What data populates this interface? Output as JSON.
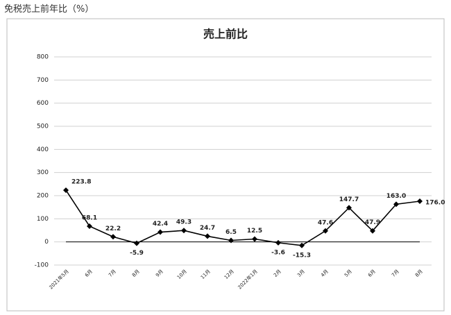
{
  "heading": "免税売上前年比（%）",
  "chart_data": {
    "type": "line",
    "title": "売上前比",
    "categories": [
      "2021年5月",
      "6月",
      "7月",
      "8月",
      "9月",
      "10月",
      "11月",
      "12月",
      "2022年1月",
      "2月",
      "3月",
      "4月",
      "5月",
      "6月",
      "7月",
      "8月"
    ],
    "values": [
      223.8,
      68.1,
      22.2,
      -5.9,
      42.4,
      49.3,
      24.7,
      6.5,
      12.5,
      -3.6,
      -15.3,
      47.6,
      147.7,
      47.9,
      163.0,
      176.0
    ],
    "value_labels": [
      "223.8",
      "68.1",
      "22.2",
      "-5.9",
      "42.4",
      "49.3",
      "24.7",
      "6.5",
      "12.5",
      "-3.6",
      "-15.3",
      "47.6",
      "147.7",
      "47.9",
      "163.0",
      "176.0"
    ],
    "color": "#000000",
    "ylim": [
      -100,
      800
    ],
    "yticks": [
      -100,
      0,
      100,
      200,
      300,
      400,
      500,
      600,
      700,
      800
    ],
    "grid": true
  }
}
